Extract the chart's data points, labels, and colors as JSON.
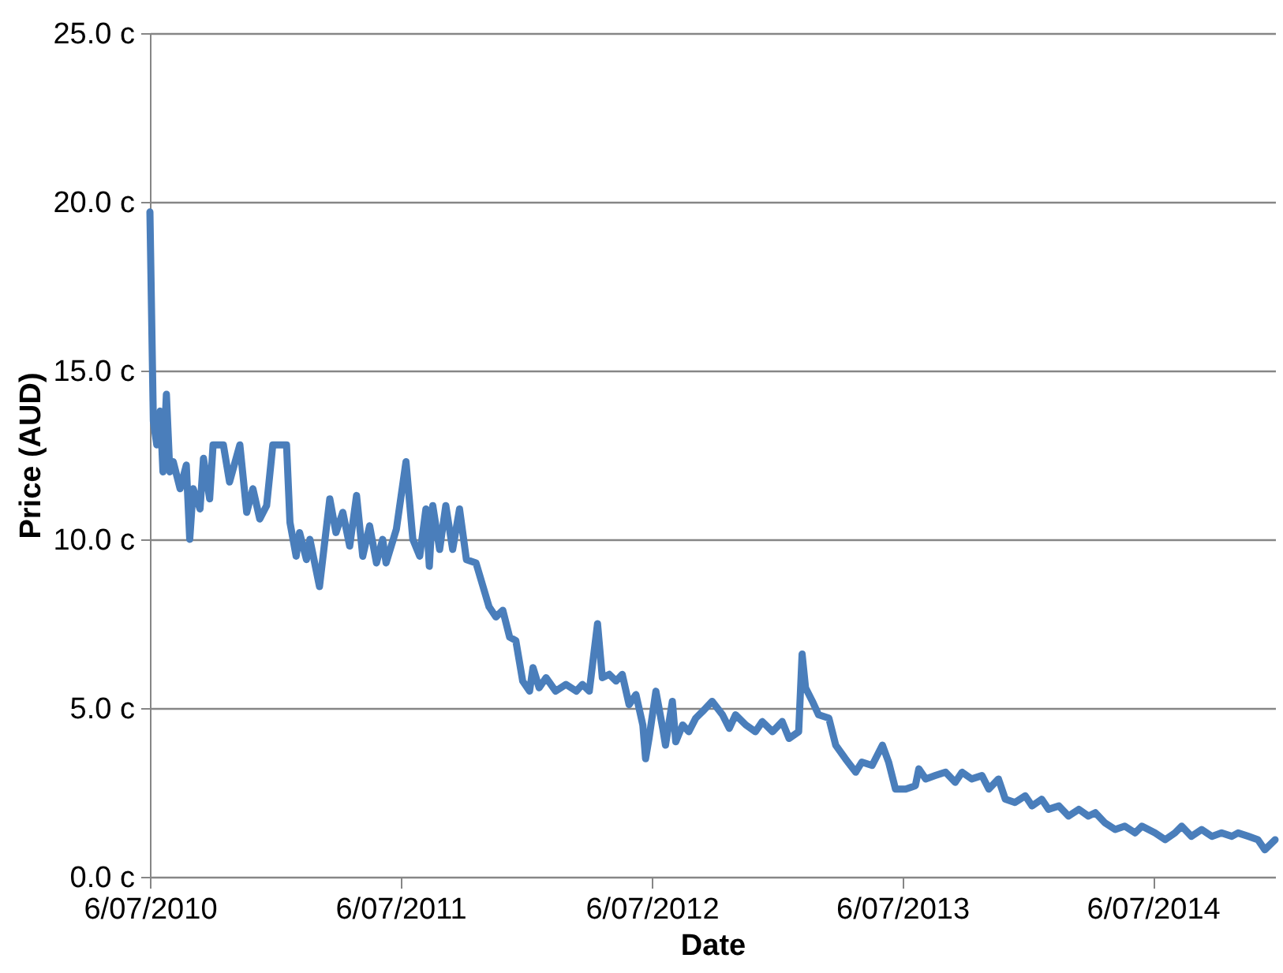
{
  "chart_data": {
    "type": "line",
    "xlabel": "Date",
    "ylabel": "Price (AUD)",
    "xlim": [
      "2010-07-06",
      "2014-12-31"
    ],
    "xticks": [
      {
        "value": "2010-07-06",
        "label": "6/07/2010"
      },
      {
        "value": "2011-07-06",
        "label": "6/07/2011"
      },
      {
        "value": "2012-07-06",
        "label": "6/07/2012"
      },
      {
        "value": "2013-07-06",
        "label": "6/07/2013"
      },
      {
        "value": "2014-07-06",
        "label": "6/07/2014"
      }
    ],
    "ylim": [
      0,
      25
    ],
    "yticks": [
      {
        "value": 0,
        "label": "0.0 c"
      },
      {
        "value": 5,
        "label": "5.0 c"
      },
      {
        "value": 10,
        "label": "10.0 c"
      },
      {
        "value": 15,
        "label": "15.0 c"
      },
      {
        "value": 20,
        "label": "20.0 c"
      },
      {
        "value": 25,
        "label": "25.0 c"
      }
    ],
    "grid": "y",
    "legend": false,
    "marker": "none",
    "line_style": "solid",
    "x": [
      "2010-07-06",
      "2010-07-11",
      "2010-07-16",
      "2010-07-21",
      "2010-07-25",
      "2010-07-30",
      "2010-08-04",
      "2010-08-09",
      "2010-08-19",
      "2010-08-28",
      "2010-09-02",
      "2010-09-07",
      "2010-09-17",
      "2010-09-22",
      "2010-10-01",
      "2010-10-06",
      "2010-10-21",
      "2010-10-30",
      "2010-11-14",
      "2010-11-24",
      "2010-12-03",
      "2010-12-13",
      "2010-12-23",
      "2011-01-01",
      "2011-01-21",
      "2011-01-26",
      "2011-02-04",
      "2011-02-09",
      "2011-02-19",
      "2011-02-24",
      "2011-03-10",
      "2011-03-25",
      "2011-04-03",
      "2011-04-13",
      "2011-04-23",
      "2011-05-03",
      "2011-05-12",
      "2011-05-22",
      "2011-06-01",
      "2011-06-10",
      "2011-06-15",
      "2011-06-30",
      "2011-07-14",
      "2011-07-24",
      "2011-08-03",
      "2011-08-12",
      "2011-08-17",
      "2011-08-22",
      "2011-09-01",
      "2011-09-10",
      "2011-09-20",
      "2011-09-30",
      "2011-10-10",
      "2011-10-24",
      "2011-11-12",
      "2011-11-22",
      "2011-12-02",
      "2011-12-12",
      "2011-12-21",
      "2011-12-31",
      "2012-01-10",
      "2012-01-15",
      "2012-01-24",
      "2012-02-03",
      "2012-02-17",
      "2012-03-03",
      "2012-03-18",
      "2012-03-27",
      "2012-04-06",
      "2012-04-18",
      "2012-04-25",
      "2012-05-05",
      "2012-05-15",
      "2012-05-24",
      "2012-06-03",
      "2012-06-13",
      "2012-06-23",
      "2012-06-27",
      "2012-07-02",
      "2012-07-12",
      "2012-07-22",
      "2012-07-26",
      "2012-08-05",
      "2012-08-10",
      "2012-08-20",
      "2012-08-29",
      "2012-09-08",
      "2012-09-18",
      "2012-10-02",
      "2012-10-17",
      "2012-10-27",
      "2012-11-05",
      "2012-11-20",
      "2012-12-04",
      "2012-12-14",
      "2012-12-29",
      "2013-01-12",
      "2013-01-22",
      "2013-02-05",
      "2013-02-10",
      "2013-02-15",
      "2013-02-25",
      "2013-03-06",
      "2013-03-21",
      "2013-03-31",
      "2013-04-14",
      "2013-04-29",
      "2013-05-08",
      "2013-05-23",
      "2013-06-07",
      "2013-06-16",
      "2013-06-26",
      "2013-07-11",
      "2013-07-25",
      "2013-07-30",
      "2013-08-09",
      "2013-08-23",
      "2013-09-07",
      "2013-09-21",
      "2013-10-01",
      "2013-10-15",
      "2013-10-30",
      "2013-11-09",
      "2013-11-23",
      "2013-12-03",
      "2013-12-17",
      "2014-01-01",
      "2014-01-11",
      "2014-01-25",
      "2014-02-04",
      "2014-02-19",
      "2014-03-05",
      "2014-03-20",
      "2014-04-03",
      "2014-04-13",
      "2014-04-27",
      "2014-05-12",
      "2014-05-26",
      "2014-06-10",
      "2014-06-20",
      "2014-07-09",
      "2014-07-24",
      "2014-08-07",
      "2014-08-17",
      "2014-08-31",
      "2014-09-15",
      "2014-09-30",
      "2014-10-14",
      "2014-10-29",
      "2014-11-07",
      "2014-11-22",
      "2014-12-06",
      "2014-12-16",
      "2014-12-26",
      "2014-12-31"
    ],
    "series": [
      {
        "color": "#4a7ebb",
        "values": [
          19.7,
          13.5,
          12.8,
          13.8,
          12.0,
          14.3,
          12.0,
          12.3,
          11.5,
          12.2,
          10.0,
          11.5,
          10.9,
          12.4,
          11.2,
          12.8,
          12.8,
          11.7,
          12.8,
          10.8,
          11.5,
          10.6,
          11.0,
          12.8,
          12.8,
          10.5,
          9.5,
          10.2,
          9.4,
          10.0,
          8.6,
          11.2,
          10.2,
          10.8,
          9.8,
          11.3,
          9.5,
          10.4,
          9.3,
          10.0,
          9.3,
          10.3,
          12.3,
          10.0,
          9.5,
          10.9,
          9.2,
          11.0,
          9.7,
          11.0,
          9.7,
          10.9,
          9.4,
          9.3,
          8.0,
          7.7,
          7.9,
          7.1,
          7.0,
          5.8,
          5.5,
          6.2,
          5.6,
          5.9,
          5.5,
          5.7,
          5.5,
          5.7,
          5.5,
          7.5,
          5.9,
          6.0,
          5.8,
          6.0,
          5.1,
          5.4,
          4.5,
          3.5,
          4.1,
          5.5,
          4.4,
          3.9,
          5.2,
          4.0,
          4.5,
          4.3,
          4.7,
          4.9,
          5.2,
          4.8,
          4.4,
          4.8,
          4.5,
          4.3,
          4.6,
          4.3,
          4.6,
          4.1,
          4.3,
          6.6,
          5.6,
          5.2,
          4.8,
          4.7,
          3.9,
          3.5,
          3.1,
          3.4,
          3.3,
          3.9,
          3.4,
          2.6,
          2.6,
          2.7,
          3.2,
          2.9,
          3.0,
          3.1,
          2.8,
          3.1,
          2.9,
          3.0,
          2.6,
          2.9,
          2.3,
          2.2,
          2.4,
          2.1,
          2.3,
          2.0,
          2.1,
          1.8,
          2.0,
          1.8,
          1.9,
          1.6,
          1.4,
          1.5,
          1.3,
          1.5,
          1.3,
          1.1,
          1.3,
          1.5,
          1.2,
          1.4,
          1.2,
          1.3,
          1.2,
          1.3,
          1.2,
          1.1,
          0.8,
          1.0,
          1.1
        ]
      }
    ]
  }
}
